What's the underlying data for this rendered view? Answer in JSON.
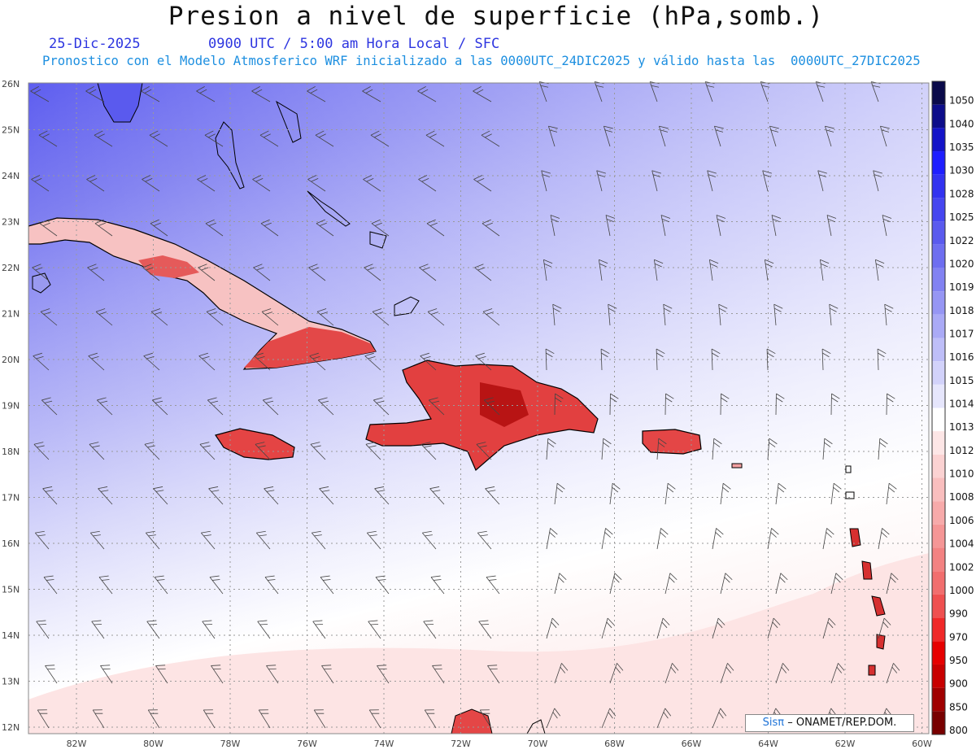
{
  "header": {
    "title": "Presion a nivel de superficie (hPa,somb.)",
    "date": "25-Dic-2025",
    "valid": "0900 UTC / 5:00 am Hora Local / SFC",
    "forecast": "Pronostico con el Modelo Atmosferico WRF inicializado a las 0000UTC_24DIC2025 y válido hasta las  0000UTC_27DIC2025"
  },
  "axes": {
    "lat_labels": [
      "26N",
      "25N",
      "24N",
      "23N",
      "22N",
      "21N",
      "20N",
      "19N",
      "18N",
      "17N",
      "16N",
      "15N",
      "14N",
      "13N",
      "12N"
    ],
    "lon_labels": [
      "82W",
      "80W",
      "78W",
      "76W",
      "74W",
      "72W",
      "70W",
      "68W",
      "66W",
      "64W",
      "62W",
      "60W"
    ]
  },
  "colorbar": {
    "levels": [
      "1050",
      "1040",
      "1035",
      "1030",
      "1028",
      "1025",
      "1022",
      "1020",
      "1019",
      "1018",
      "1017",
      "1016",
      "1015",
      "1014",
      "1013",
      "1012",
      "1010",
      "1008",
      "1006",
      "1004",
      "1002",
      "1000",
      "990",
      "970",
      "950",
      "900",
      "850",
      "800"
    ],
    "colors": [
      "#0a0a4a",
      "#0d0d8a",
      "#1414c8",
      "#1e1eff",
      "#3232f0",
      "#4646f0",
      "#5a5aee",
      "#6e6ef0",
      "#8282f2",
      "#9696f4",
      "#aaaaf6",
      "#bebef8",
      "#d2d2fa",
      "#e6e6fc",
      "#ffffff",
      "#fde6e6",
      "#fbd2d2",
      "#f9bebe",
      "#f7aaaa",
      "#f59696",
      "#f38282",
      "#f16e6e",
      "#ef5050",
      "#f02828",
      "#e60000",
      "#c80000",
      "#a00000",
      "#780000"
    ]
  },
  "credit": {
    "brand": "Sisπ",
    "text": "– ONAMET/REP.DOM."
  }
}
